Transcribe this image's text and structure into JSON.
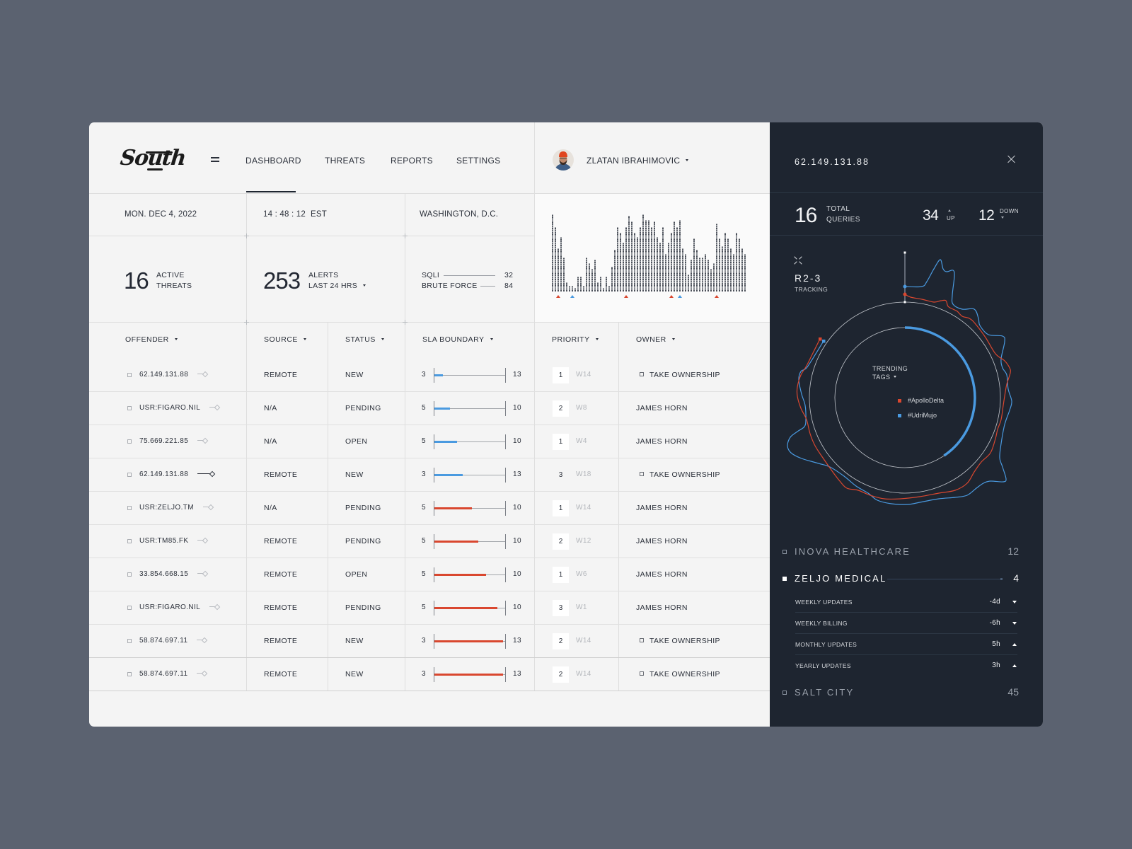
{
  "brand": {
    "name": "South"
  },
  "nav": {
    "menu_icon": "hamburger-icon",
    "items": [
      {
        "label": "DASHBOARD",
        "active": true
      },
      {
        "label": "THREATS",
        "active": false
      },
      {
        "label": "REPORTS",
        "active": false
      },
      {
        "label": "SETTINGS",
        "active": false
      }
    ]
  },
  "user": {
    "name": "ZLATAN IBRAHIMOVIC"
  },
  "info": {
    "date": "MON. DEC 4, 2022",
    "time": "14 : 48 : 12",
    "timezone": "EST",
    "location": "WASHINGTON, D.C."
  },
  "stats": {
    "active_threats": {
      "value": "16",
      "label_line1": "ACTIVE",
      "label_line2": "THREATS"
    },
    "alerts": {
      "value": "253",
      "label_line1": "ALERTS",
      "label_line2": "LAST 24 HRS"
    },
    "attack_types": [
      {
        "label": "SQLI",
        "value": "32"
      },
      {
        "label": "BRUTE FORCE",
        "value": "84"
      }
    ]
  },
  "histogram": {
    "values": [
      41,
      34,
      23,
      29,
      18,
      5,
      3,
      3,
      2,
      8,
      8,
      3,
      18,
      15,
      12,
      17,
      5,
      8,
      2,
      8,
      3,
      13,
      22,
      34,
      31,
      26,
      34,
      40,
      37,
      31,
      29,
      34,
      41,
      38,
      38,
      34,
      37,
      29,
      26,
      34,
      20,
      26,
      31,
      37,
      34,
      38,
      23,
      20,
      9,
      17,
      28,
      22,
      18,
      18,
      20,
      17,
      12,
      15,
      36,
      28,
      24,
      31,
      28,
      23,
      20,
      31,
      28,
      23,
      20
    ],
    "markers": [
      {
        "col": 2,
        "color": "#d9472f"
      },
      {
        "col": 7,
        "color": "#4a9ae0"
      },
      {
        "col": 26,
        "color": "#d9472f"
      },
      {
        "col": 42,
        "color": "#d9472f"
      },
      {
        "col": 45,
        "color": "#4a9ae0"
      },
      {
        "col": 58,
        "color": "#d9472f"
      }
    ]
  },
  "table": {
    "columns": [
      {
        "label": "OFFENDER"
      },
      {
        "label": "SOURCE"
      },
      {
        "label": "STATUS"
      },
      {
        "label": "SLA BOUNDARY"
      },
      {
        "label": "PRIORITY"
      },
      {
        "label": "OWNER"
      }
    ],
    "rows": [
      {
        "offender": "62.149.131.88",
        "linked": false,
        "source": "REMOTE",
        "status": "NEW",
        "sla_min": 3,
        "sla_max": 13,
        "sla_fill_pct": 12,
        "sla_color": "#4a9ae0",
        "priority": 1,
        "priority_boxed": true,
        "week": "W14",
        "owner": "TAKE OWNERSHIP",
        "owner_checkbox": true
      },
      {
        "offender": "USR:FIGARO.NIL",
        "linked": false,
        "source": "N/A",
        "status": "PENDING",
        "sla_min": 5,
        "sla_max": 10,
        "sla_fill_pct": 22,
        "sla_color": "#4a9ae0",
        "priority": 2,
        "priority_boxed": true,
        "week": "W8",
        "owner": "JAMES HORN",
        "owner_checkbox": false
      },
      {
        "offender": "75.669.221.85",
        "linked": false,
        "source": "N/A",
        "status": "OPEN",
        "sla_min": 5,
        "sla_max": 10,
        "sla_fill_pct": 31,
        "sla_color": "#4a9ae0",
        "priority": 1,
        "priority_boxed": true,
        "week": "W4",
        "owner": "JAMES HORN",
        "owner_checkbox": false
      },
      {
        "offender": "62.149.131.88",
        "linked": true,
        "source": "REMOTE",
        "status": "NEW",
        "sla_min": 3,
        "sla_max": 13,
        "sla_fill_pct": 39,
        "sla_color": "#4a9ae0",
        "priority": 3,
        "priority_boxed": false,
        "week": "W18",
        "owner": "TAKE OWNERSHIP",
        "owner_checkbox": true
      },
      {
        "offender": "USR:ZELJO.TM",
        "linked": false,
        "source": "N/A",
        "status": "PENDING",
        "sla_min": 5,
        "sla_max": 10,
        "sla_fill_pct": 52,
        "sla_color": "#d9472f",
        "priority": 1,
        "priority_boxed": true,
        "week": "W14",
        "owner": "JAMES HORN",
        "owner_checkbox": false
      },
      {
        "offender": "USR:TM85.FK",
        "linked": false,
        "source": "REMOTE",
        "status": "PENDING",
        "sla_min": 5,
        "sla_max": 10,
        "sla_fill_pct": 61,
        "sla_color": "#d9472f",
        "priority": 2,
        "priority_boxed": true,
        "week": "W12",
        "owner": "JAMES HORN",
        "owner_checkbox": false
      },
      {
        "offender": "33.854.668.15",
        "linked": false,
        "source": "REMOTE",
        "status": "OPEN",
        "sla_min": 5,
        "sla_max": 10,
        "sla_fill_pct": 72,
        "sla_color": "#d9472f",
        "priority": 1,
        "priority_boxed": true,
        "week": "W6",
        "owner": "JAMES HORN",
        "owner_checkbox": false
      },
      {
        "offender": "USR:FIGARO.NIL",
        "linked": false,
        "source": "REMOTE",
        "status": "PENDING",
        "sla_min": 5,
        "sla_max": 10,
        "sla_fill_pct": 87,
        "sla_color": "#d9472f",
        "priority": 3,
        "priority_boxed": true,
        "week": "W1",
        "owner": "JAMES HORN",
        "owner_checkbox": false
      },
      {
        "offender": "58.874.697.11",
        "linked": false,
        "source": "REMOTE",
        "status": "NEW",
        "sla_min": 3,
        "sla_max": 13,
        "sla_fill_pct": 95,
        "sla_color": "#d9472f",
        "priority": 2,
        "priority_boxed": true,
        "week": "W14",
        "owner": "TAKE OWNERSHIP",
        "owner_checkbox": true
      },
      {
        "offender": "58.874.697.11",
        "linked": false,
        "source": "REMOTE",
        "status": "NEW",
        "sla_min": 3,
        "sla_max": 13,
        "sla_fill_pct": 95,
        "sla_color": "#d9472f",
        "priority": 2,
        "priority_boxed": true,
        "week": "W14",
        "owner": "TAKE OWNERSHIP",
        "owner_checkbox": true
      }
    ]
  },
  "detail": {
    "ip": "62.149.131.88",
    "total_queries": {
      "value": "16",
      "label_line1": "TOTAL",
      "label_line2": "QUERIES"
    },
    "up": {
      "value": "34",
      "label": "UP"
    },
    "down": {
      "value": "12",
      "label": "DOWN"
    },
    "tracking": {
      "id": "R2-3",
      "label": "TRACKING",
      "center_title_line1": "TRENDING",
      "center_title_line2": "TAGS",
      "tags": [
        {
          "label": "#ApolloDelta",
          "color": "#d9472f"
        },
        {
          "label": "#UdriMujo",
          "color": "#4a9ae0"
        }
      ]
    },
    "organizations": [
      {
        "name": "INOVA HEALTHCARE",
        "count": "12",
        "expanded": false
      },
      {
        "name": "ZELJO MEDICAL",
        "count": "4",
        "expanded": true,
        "items": [
          {
            "label": "WEEKLY UPDATES",
            "value": "-4d",
            "trend_up": false
          },
          {
            "label": "WEEKLY BILLING",
            "value": "-6h",
            "trend_up": false
          },
          {
            "label": "MONTHLY UPDATES",
            "value": "5h",
            "trend_up": true
          },
          {
            "label": "YEARLY UPDATES",
            "value": "3h",
            "trend_up": true
          }
        ]
      },
      {
        "name": "SALT CITY",
        "count": "45",
        "expanded": false
      }
    ]
  },
  "theme": {
    "accent_red": "#d9472f",
    "accent_blue": "#4a9ae0",
    "panel_dark": "#1e2530"
  }
}
